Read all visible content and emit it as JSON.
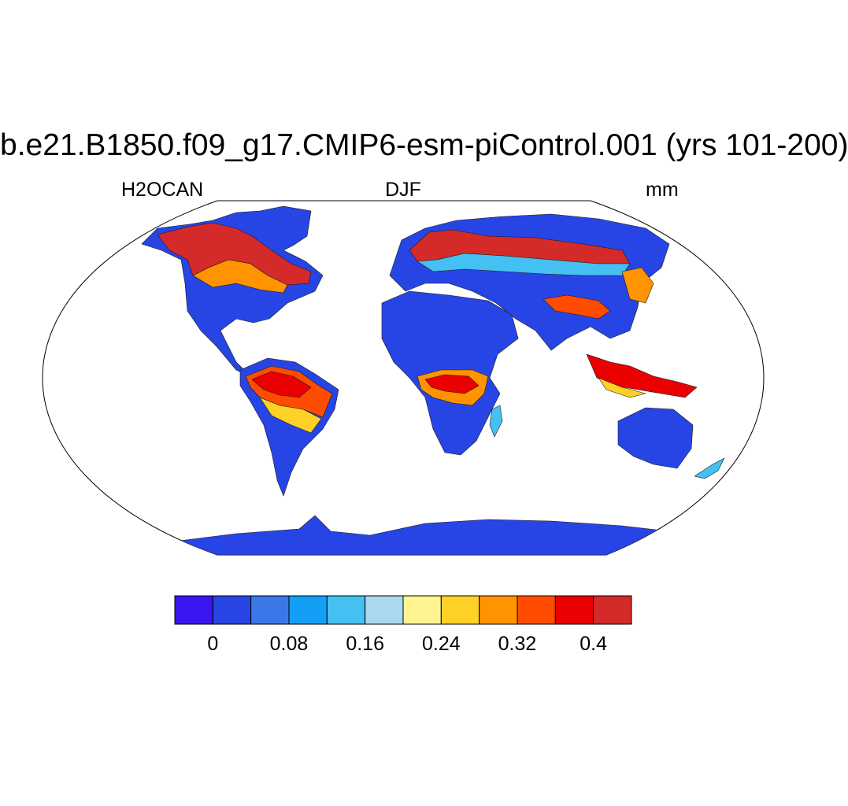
{
  "title": "b.e21.B1850.f09_g17.CMIP6-esm-piControl.001 (yrs 101-200)",
  "left_label": "H2OCAN",
  "center_label": "DJF",
  "right_label": "mm",
  "projection": "Robinson",
  "colorbar": {
    "colors": [
      "#3a16f2",
      "#2745e4",
      "#3a78ea",
      "#149ff6",
      "#44c0f2",
      "#aad8ef",
      "#fff590",
      "#ffd126",
      "#ff9400",
      "#ff4c00",
      "#ea0000",
      "#d52a2a"
    ],
    "tick_labels": [
      "0",
      "0.08",
      "0.16",
      "0.24",
      "0.32",
      "0.4"
    ],
    "tick_boundaries": [
      1,
      3,
      5,
      7,
      9,
      11
    ]
  },
  "land_regions": [
    {
      "name": "North America",
      "color": "#2745e4"
    },
    {
      "name": "Canada boreal band",
      "color": "#d52a2a"
    },
    {
      "name": "South America",
      "color": "#2745e4"
    },
    {
      "name": "Amazon",
      "color": "#ff4c00"
    },
    {
      "name": "Africa",
      "color": "#2745e4"
    },
    {
      "name": "Central Africa",
      "color": "#ff9400"
    },
    {
      "name": "Eurasia",
      "color": "#2745e4"
    },
    {
      "name": "Siberian boreal band",
      "color": "#d52a2a"
    },
    {
      "name": "Maritime Continent",
      "color": "#ea0000"
    },
    {
      "name": "Australia",
      "color": "#2745e4"
    },
    {
      "name": "Antarctica",
      "color": "#2745e4"
    }
  ]
}
